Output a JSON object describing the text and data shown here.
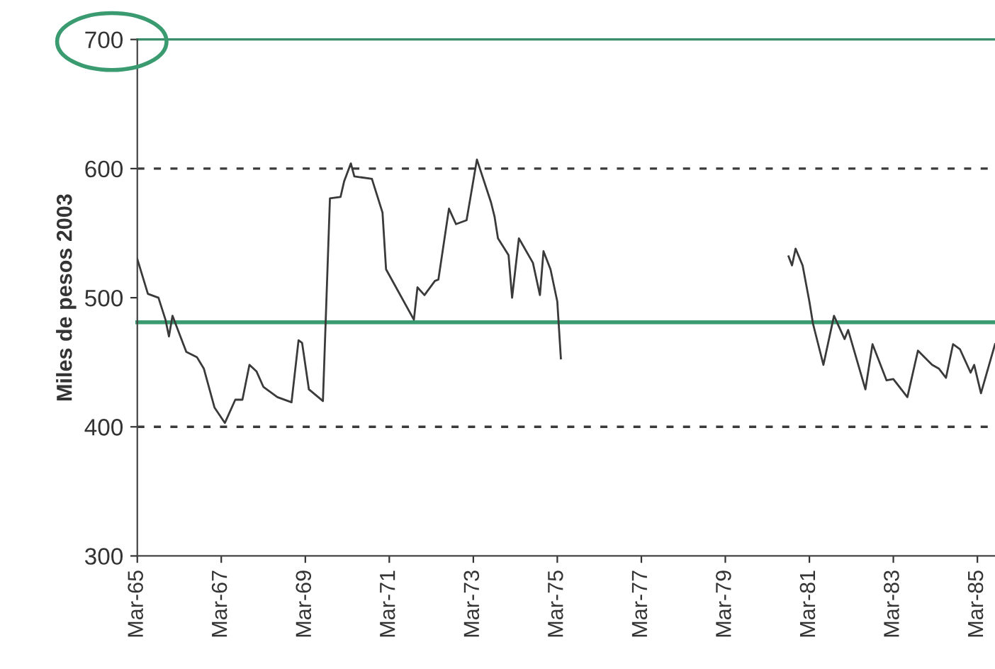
{
  "chart_data": {
    "type": "line",
    "ylabel": "Miles de pesos 2003",
    "x": [
      "1965-03",
      "1965-06",
      "1965-09",
      "1965-11",
      "1965-12",
      "1966-01",
      "1966-05",
      "1966-08",
      "1966-10",
      "1967-01",
      "1967-04",
      "1967-07",
      "1967-09",
      "1967-11",
      "1968-01",
      "1968-03",
      "1968-07",
      "1968-11",
      "1969-01",
      "1969-02",
      "1969-04",
      "1969-08",
      "1969-10",
      "1970-01",
      "1970-02",
      "1970-04",
      "1970-05",
      "1970-10",
      "1971-01",
      "1971-02",
      "1971-10",
      "1971-11",
      "1972-01",
      "1972-04",
      "1972-05",
      "1972-08",
      "1972-10",
      "1973-01",
      "1973-04",
      "1973-08",
      "1973-09",
      "1973-10",
      "1974-01",
      "1974-02",
      "1974-04",
      "1974-08",
      "1974-10",
      "1974-11",
      "1975-01",
      "1975-03",
      "1975-04",
      "1978-01",
      "1980-09",
      "1980-10",
      "1980-11",
      "1981-01",
      "1981-03",
      "1981-04",
      "1981-07",
      "1981-10",
      "1982-01",
      "1982-02",
      "1982-07",
      "1982-09",
      "1983-01",
      "1983-03",
      "1983-07",
      "1983-10",
      "1984-02",
      "1984-04",
      "1984-06",
      "1984-08",
      "1984-10",
      "1985-01",
      "1985-02",
      "1985-04",
      "1985-08"
    ],
    "series": [
      {
        "color": "#3a3a3a",
        "values": [
          530,
          503,
          500,
          483,
          470,
          486,
          458,
          454,
          445,
          415,
          403,
          421,
          421,
          448,
          443,
          431,
          423,
          419,
          467,
          465,
          429,
          420,
          577,
          578,
          590,
          604,
          594,
          592,
          566,
          522,
          483,
          508,
          502,
          513,
          514,
          569,
          557,
          560,
          607,
          574,
          563,
          546,
          533,
          500,
          546,
          527,
          502,
          536,
          522,
          497,
          453,
          null,
          532,
          525,
          538,
          525,
          497,
          480,
          448,
          486,
          468,
          475,
          429,
          464,
          436,
          437,
          423,
          459,
          448,
          445,
          438,
          464,
          460,
          442,
          448,
          426,
          464
        ]
      }
    ],
    "xlim": [
      "1965-03",
      "1985-08"
    ],
    "xticks": [
      {
        "value": "1965-03",
        "label": "Mar-65"
      },
      {
        "value": "1967-03",
        "label": "Mar-67"
      },
      {
        "value": "1969-03",
        "label": "Mar-69"
      },
      {
        "value": "1971-03",
        "label": "Mar-71"
      },
      {
        "value": "1973-03",
        "label": "Mar-73"
      },
      {
        "value": "1975-03",
        "label": "Mar-75"
      },
      {
        "value": "1977-03",
        "label": "Mar-77"
      },
      {
        "value": "1979-03",
        "label": "Mar-79"
      },
      {
        "value": "1981-03",
        "label": "Mar-81"
      },
      {
        "value": "1983-03",
        "label": "Mar-83"
      },
      {
        "value": "1985-03",
        "label": "Mar-85"
      }
    ],
    "ylim": [
      300,
      700
    ],
    "yticks": [
      300,
      400,
      500,
      600,
      700
    ],
    "ref_lines": [
      {
        "axis": "y",
        "value": 700,
        "color": "#3a8f6a",
        "line_style": "solid"
      },
      {
        "axis": "y",
        "value": 600,
        "color": "#3a3a3a",
        "line_style": "dashed"
      },
      {
        "axis": "y",
        "value": 481,
        "color": "#3a9a70",
        "line_style": "solid"
      },
      {
        "axis": "y",
        "value": 400,
        "color": "#3a3a3a",
        "line_style": "dashed"
      }
    ],
    "grid": false,
    "legend": false,
    "line_style": "solid",
    "marker": "none"
  }
}
